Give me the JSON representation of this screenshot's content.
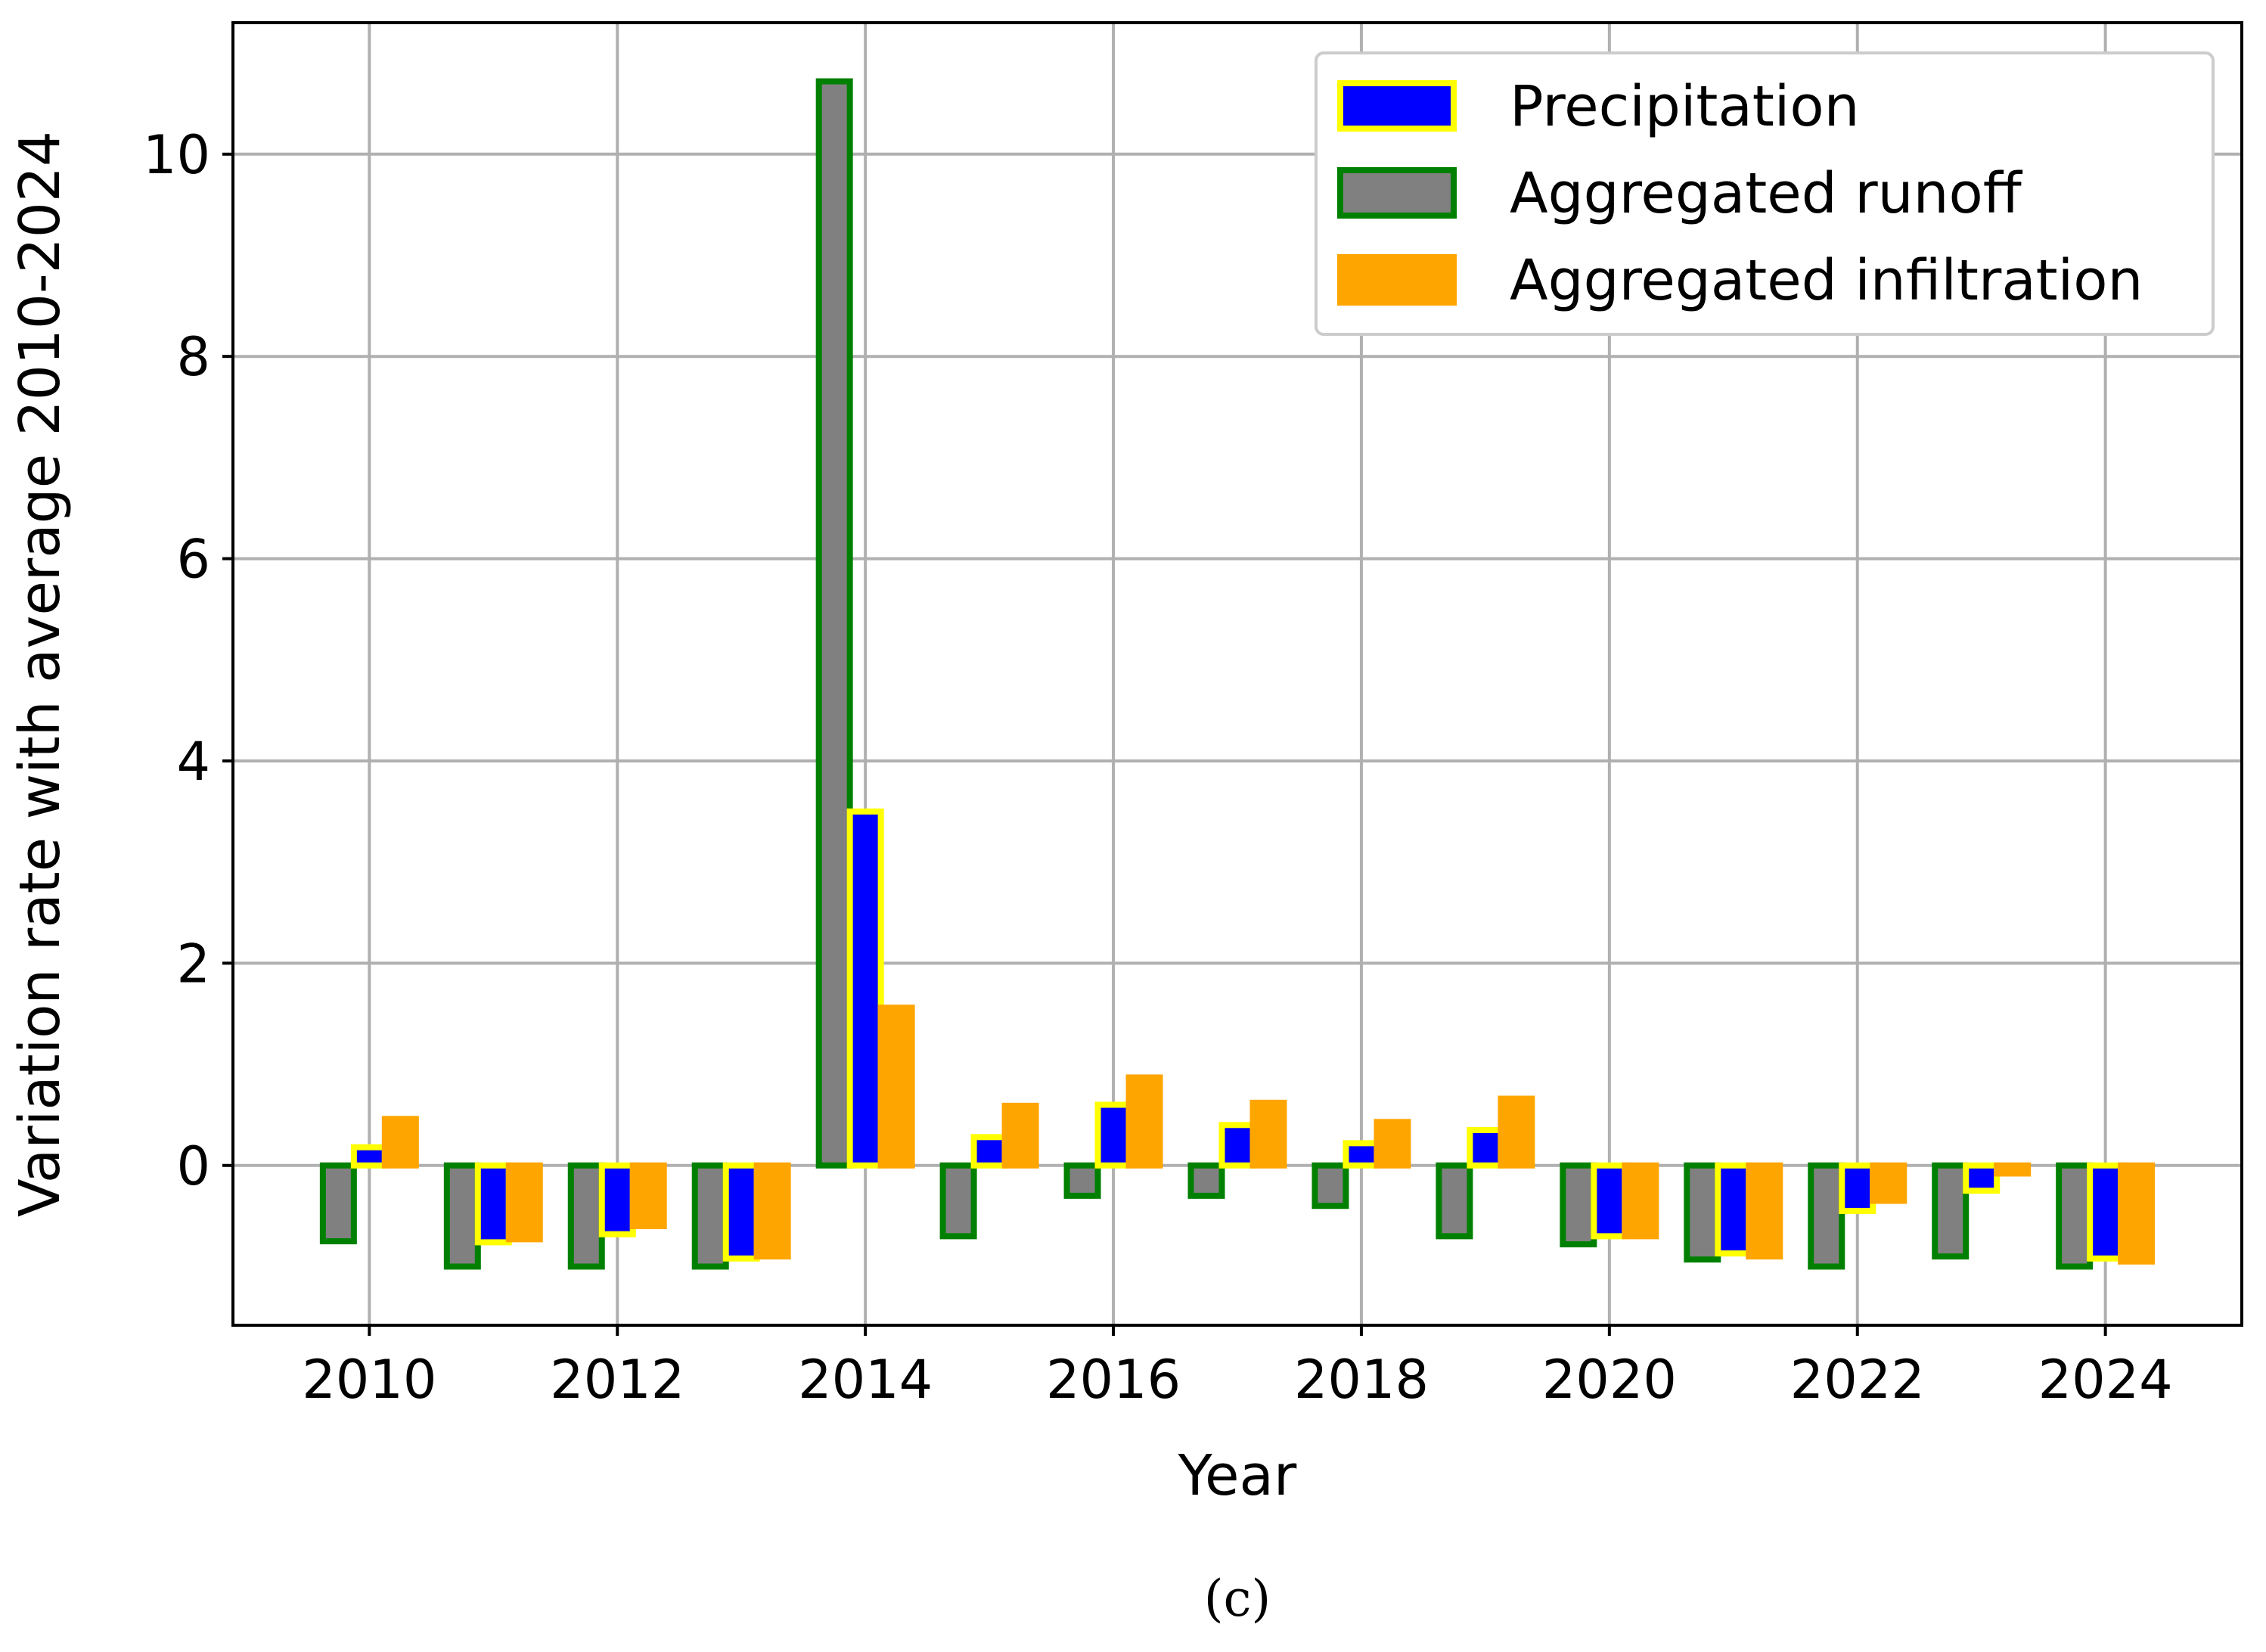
{
  "chart_data": {
    "type": "bar",
    "xlabel": "Year",
    "ylabel": "Variation rate with average 2010-2024",
    "caption": "(c)",
    "x": [
      2010,
      2011,
      2012,
      2013,
      2014,
      2015,
      2016,
      2017,
      2018,
      2019,
      2020,
      2021,
      2022,
      2023,
      2024
    ],
    "x_ticks": [
      "2010",
      "2012",
      "2014",
      "2016",
      "2018",
      "2020",
      "2022",
      "2024"
    ],
    "y_ticks": [
      "0",
      "2",
      "4",
      "6",
      "8",
      "10"
    ],
    "xlim": [
      2008.9,
      2025.1
    ],
    "ylim": [
      -1.58,
      11.3
    ],
    "grid": true,
    "legend_position": "top-right",
    "series": [
      {
        "name": "Precipitation",
        "fill": "#0000ff",
        "edge": "#ffff00",
        "values": [
          0.18,
          -0.76,
          -0.68,
          -0.92,
          3.5,
          0.28,
          0.6,
          0.4,
          0.22,
          0.35,
          -0.7,
          -0.87,
          -0.45,
          -0.25,
          -0.92
        ]
      },
      {
        "name": "Aggregated runoff",
        "fill": "#808080",
        "edge": "#008000",
        "values": [
          -0.75,
          -1.0,
          -1.0,
          -1.0,
          10.72,
          -0.7,
          -0.3,
          -0.3,
          -0.4,
          -0.7,
          -0.78,
          -0.93,
          -1.0,
          -0.9,
          -1.0
        ]
      },
      {
        "name": "Aggregated infiltration",
        "fill": "#ffa500",
        "edge": "#ffa500",
        "values": [
          0.46,
          -0.73,
          -0.6,
          -0.9,
          1.56,
          0.59,
          0.87,
          0.62,
          0.43,
          0.66,
          -0.7,
          -0.9,
          -0.35,
          -0.08,
          -0.95
        ]
      }
    ]
  }
}
